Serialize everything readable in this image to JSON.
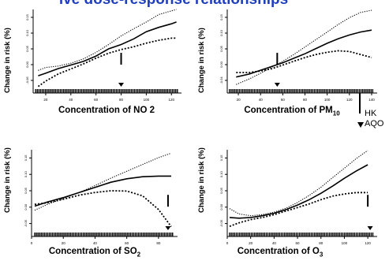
{
  "figure_title": "ive dose-response relationships",
  "legend": {
    "items": [
      {
        "symbol": "bar",
        "label": "HK"
      },
      {
        "symbol": "triangle-down",
        "label": "AQO"
      }
    ]
  },
  "chart_data": [
    {
      "type": "line",
      "panel": "no2",
      "xlabel": "Concentration of NO 2",
      "ylabel": "Change in risk (%)",
      "xlim": [
        10,
        128
      ],
      "ylim": [
        -0.6,
        1.6
      ],
      "xticks": [
        "20",
        "40",
        "60",
        "80",
        "100",
        "120"
      ],
      "yticks": [
        "-0.06",
        "0.00",
        "0.05",
        "0.10",
        "0.15"
      ],
      "hk_marker_x": 80,
      "aqo_marker_x": 80,
      "grid": false,
      "legend_position": "right-outside",
      "series": [
        {
          "role": "estimate",
          "x": [
            14,
            20,
            30,
            40,
            50,
            60,
            70,
            80,
            90,
            100,
            110,
            120,
            124
          ],
          "y": [
            -0.25,
            -0.18,
            -0.05,
            0.05,
            0.15,
            0.3,
            0.5,
            0.62,
            0.78,
            0.98,
            1.1,
            1.2,
            1.25
          ]
        },
        {
          "role": "upper",
          "x": [
            14,
            20,
            30,
            40,
            50,
            60,
            70,
            80,
            90,
            100,
            110,
            120,
            124
          ],
          "y": [
            -0.1,
            -0.02,
            0.02,
            0.1,
            0.22,
            0.4,
            0.62,
            0.86,
            1.06,
            1.25,
            1.46,
            1.56,
            1.6
          ]
        },
        {
          "role": "lower",
          "x": [
            14,
            20,
            30,
            40,
            50,
            60,
            70,
            80,
            90,
            100,
            110,
            120,
            124
          ],
          "y": [
            -0.55,
            -0.4,
            -0.2,
            -0.06,
            0.08,
            0.24,
            0.38,
            0.48,
            0.56,
            0.66,
            0.74,
            0.8,
            0.8
          ]
        }
      ]
    },
    {
      "type": "line",
      "panel": "pm10",
      "xlabel": "Concentration of PM10",
      "xlabel_main": "Concentration of PM",
      "xlabel_sub": "10",
      "ylabel": "Change in risk (%)",
      "xlim": [
        10,
        145
      ],
      "ylim": [
        -0.6,
        1.5
      ],
      "xticks": [
        "20",
        "40",
        "60",
        "80",
        "100",
        "120",
        "140"
      ],
      "yticks": [
        "-0.04",
        "0.00",
        "0.05",
        "0.10",
        "0.15"
      ],
      "hk_marker_x": 55,
      "aqo_marker_x": 55,
      "grid": false,
      "legend_position": "right-outside",
      "series": [
        {
          "role": "estimate",
          "x": [
            18,
            30,
            40,
            50,
            60,
            70,
            80,
            90,
            100,
            110,
            120,
            130,
            140
          ],
          "y": [
            -0.3,
            -0.22,
            -0.12,
            -0.02,
            0.08,
            0.2,
            0.32,
            0.46,
            0.6,
            0.72,
            0.82,
            0.9,
            0.95
          ]
        },
        {
          "role": "upper",
          "x": [
            18,
            30,
            40,
            50,
            60,
            70,
            80,
            90,
            100,
            110,
            120,
            130,
            140
          ],
          "y": [
            -0.5,
            -0.35,
            -0.2,
            -0.04,
            0.12,
            0.3,
            0.5,
            0.7,
            0.9,
            1.1,
            1.28,
            1.42,
            1.48
          ]
        },
        {
          "role": "lower",
          "x": [
            18,
            30,
            40,
            50,
            60,
            70,
            80,
            90,
            100,
            110,
            120,
            130,
            140
          ],
          "y": [
            -0.18,
            -0.18,
            -0.14,
            -0.08,
            0.02,
            0.12,
            0.22,
            0.3,
            0.36,
            0.4,
            0.38,
            0.3,
            0.22
          ]
        }
      ]
    },
    {
      "type": "line",
      "panel": "so2",
      "xlabel": "Concentration of SO2",
      "xlabel_main": "Concentration of SO",
      "xlabel_sub": "2",
      "ylabel": "Change in risk (%)",
      "xlim": [
        0,
        92
      ],
      "ylim": [
        -0.85,
        1.55
      ],
      "xticks": [
        "0",
        "20",
        "40",
        "60",
        "80"
      ],
      "yticks": [
        "-0.05",
        "0.00",
        "0.05",
        "0.10",
        "0.15"
      ],
      "hk_marker_x": 86,
      "aqo_marker_x": 86,
      "grid": false,
      "legend_position": "right-outside",
      "series": [
        {
          "role": "estimate",
          "x": [
            2,
            10,
            20,
            30,
            40,
            50,
            60,
            70,
            80,
            88
          ],
          "y": [
            -0.1,
            0.02,
            0.15,
            0.3,
            0.45,
            0.6,
            0.7,
            0.76,
            0.78,
            0.78
          ]
        },
        {
          "role": "upper",
          "x": [
            2,
            10,
            20,
            30,
            40,
            50,
            60,
            70,
            80,
            88
          ],
          "y": [
            -0.22,
            -0.05,
            0.12,
            0.3,
            0.5,
            0.72,
            0.92,
            1.12,
            1.32,
            1.45
          ]
        },
        {
          "role": "lower",
          "x": [
            2,
            10,
            20,
            30,
            40,
            50,
            60,
            70,
            80,
            88
          ],
          "y": [
            -0.05,
            0.0,
            0.1,
            0.22,
            0.3,
            0.35,
            0.34,
            0.2,
            -0.2,
            -0.7
          ]
        }
      ]
    },
    {
      "type": "line",
      "panel": "o3",
      "xlabel": "Concentration of O3",
      "xlabel_main": "Concentration of O",
      "xlabel_sub": "3",
      "ylabel": "Change in risk (%)",
      "xlim": [
        0,
        128
      ],
      "ylim": [
        -0.7,
        1.6
      ],
      "xticks": [
        "0",
        "20",
        "40",
        "60",
        "80",
        "100",
        "120"
      ],
      "yticks": [
        "-0.05",
        "0.00",
        "0.05",
        "0.10",
        "0.15"
      ],
      "hk_marker_x": 120,
      "aqo_marker_x": 122,
      "grid": false,
      "legend_position": "right-outside",
      "series": [
        {
          "role": "estimate",
          "x": [
            2,
            10,
            20,
            30,
            40,
            50,
            60,
            70,
            80,
            90,
            100,
            110,
            120
          ],
          "y": [
            -0.3,
            -0.32,
            -0.3,
            -0.25,
            -0.18,
            -0.08,
            0.05,
            0.2,
            0.38,
            0.58,
            0.8,
            1.0,
            1.18
          ]
        },
        {
          "role": "upper",
          "x": [
            2,
            10,
            20,
            30,
            40,
            50,
            60,
            70,
            80,
            90,
            100,
            110,
            120
          ],
          "y": [
            -0.05,
            -0.2,
            -0.25,
            -0.22,
            -0.15,
            -0.04,
            0.12,
            0.32,
            0.55,
            0.82,
            1.08,
            1.35,
            1.58
          ]
        },
        {
          "role": "lower",
          "x": [
            2,
            10,
            20,
            30,
            40,
            50,
            60,
            70,
            80,
            90,
            100,
            110,
            120
          ],
          "y": [
            -0.55,
            -0.45,
            -0.36,
            -0.3,
            -0.22,
            -0.12,
            -0.02,
            0.08,
            0.2,
            0.3,
            0.36,
            0.4,
            0.4
          ]
        }
      ]
    }
  ]
}
